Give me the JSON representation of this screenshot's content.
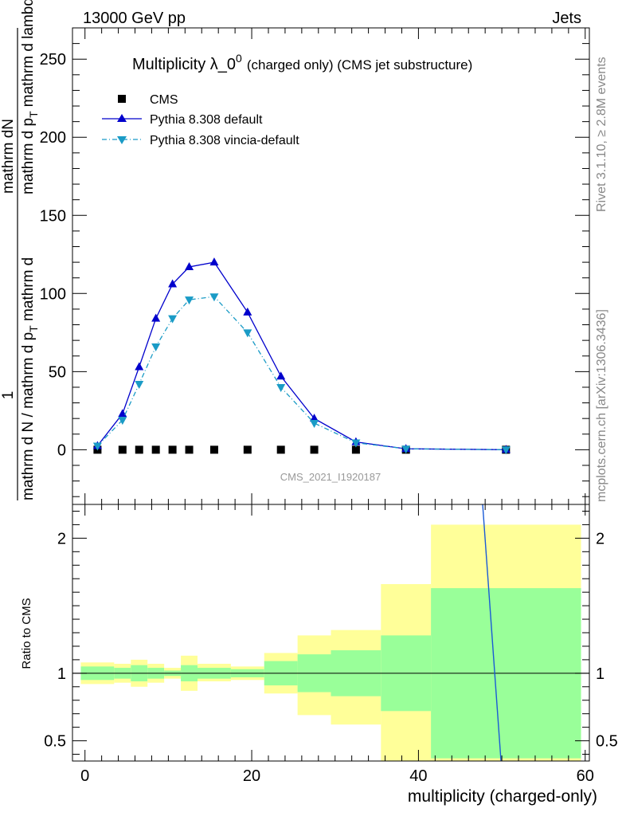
{
  "header": {
    "left": "13000 GeV pp",
    "right": "Jets"
  },
  "side_labels": {
    "rivet": "Rivet 3.1.10, ≥ 2.8M events",
    "mcplots": "mcplots.cern.ch [arXiv:1306.3436]"
  },
  "watermark": "CMS_2021_I1920187",
  "chart_data": [
    {
      "type": "line",
      "title_main": "Multiplicity λ_0",
      "title_sup": "0",
      "title_sub": "(charged only) (CMS jet substructure)",
      "ylabel_num": "1",
      "ylabel_num2": "mathrm dN",
      "ylabel_den": "mathrm d N / mathrm d p",
      "ylabel_den2": "mathrm d p",
      "ylabel_den3": "mathrm d lambda",
      "ylabel_t": "T",
      "ylabel_sub_t": "T",
      "ylabel_mid": " mathrm d",
      "xlim": [
        -1.5,
        60.5
      ],
      "ylim": [
        -35,
        270
      ],
      "yticks": [
        0,
        50,
        100,
        150,
        200,
        250
      ],
      "series": [
        {
          "name": "CMS",
          "style": "square",
          "color": "#000000",
          "points": [
            [
              1.5,
              0
            ],
            [
              4.5,
              0
            ],
            [
              6.5,
              0
            ],
            [
              8.5,
              0
            ],
            [
              10.5,
              0
            ],
            [
              12.5,
              0
            ],
            [
              15.5,
              0
            ],
            [
              19.5,
              0
            ],
            [
              23.5,
              0
            ],
            [
              27.5,
              0
            ],
            [
              32.5,
              0
            ],
            [
              38.5,
              0
            ],
            [
              50.5,
              0
            ]
          ]
        },
        {
          "name": "Pythia 8.308 default",
          "style": "triangle-up",
          "color": "#0000cc",
          "dash": "",
          "points": [
            [
              1.5,
              2.5
            ],
            [
              4.5,
              23
            ],
            [
              6.5,
              53
            ],
            [
              8.5,
              84
            ],
            [
              10.5,
              106
            ],
            [
              12.5,
              117
            ],
            [
              15.5,
              120
            ],
            [
              19.5,
              88
            ],
            [
              23.5,
              47
            ],
            [
              27.5,
              20
            ],
            [
              32.5,
              5
            ],
            [
              38.5,
              0.6
            ],
            [
              50.5,
              0.05
            ]
          ]
        },
        {
          "name": "Pythia 8.308 vincia-default",
          "style": "triangle-down",
          "color": "#1a9bc6",
          "dash": "6,3,1,3",
          "points": [
            [
              1.5,
              2.5
            ],
            [
              4.5,
              19
            ],
            [
              6.5,
              42
            ],
            [
              8.5,
              66
            ],
            [
              10.5,
              84
            ],
            [
              12.5,
              96
            ],
            [
              15.5,
              98
            ],
            [
              19.5,
              75
            ],
            [
              23.5,
              40
            ],
            [
              27.5,
              17
            ],
            [
              32.5,
              4.5
            ],
            [
              38.5,
              0.6
            ],
            [
              50.5,
              0.05
            ]
          ]
        }
      ]
    },
    {
      "type": "area",
      "ylabel": "Ratio to CMS",
      "xlabel": "multiplicity (charged-only)",
      "xlim": [
        -1.5,
        60.5
      ],
      "ylim": [
        0.35,
        2.25
      ],
      "yticks": [
        0.5,
        1,
        2
      ],
      "yticklabels": [
        "0.5",
        "1",
        "2"
      ],
      "xticks": [
        0,
        20,
        40,
        60
      ],
      "bins": [
        {
          "lo": -0.5,
          "hi": 3.5,
          "y_lo": 0.92,
          "y_hi": 1.08,
          "g_lo": 0.95,
          "g_hi": 1.05
        },
        {
          "lo": 3.5,
          "hi": 5.5,
          "y_lo": 0.93,
          "y_hi": 1.07,
          "g_lo": 0.96,
          "g_hi": 1.04
        },
        {
          "lo": 5.5,
          "hi": 7.5,
          "y_lo": 0.9,
          "y_hi": 1.1,
          "g_lo": 0.94,
          "g_hi": 1.06
        },
        {
          "lo": 7.5,
          "hi": 9.5,
          "y_lo": 0.93,
          "y_hi": 1.07,
          "g_lo": 0.96,
          "g_hi": 1.04
        },
        {
          "lo": 9.5,
          "hi": 11.5,
          "y_lo": 0.96,
          "y_hi": 1.04,
          "g_lo": 0.98,
          "g_hi": 1.02
        },
        {
          "lo": 11.5,
          "hi": 13.5,
          "y_lo": 0.87,
          "y_hi": 1.13,
          "g_lo": 0.94,
          "g_hi": 1.06
        },
        {
          "lo": 13.5,
          "hi": 17.5,
          "y_lo": 0.94,
          "y_hi": 1.07,
          "g_lo": 0.96,
          "g_hi": 1.04
        },
        {
          "lo": 17.5,
          "hi": 21.5,
          "y_lo": 0.95,
          "y_hi": 1.05,
          "g_lo": 0.97,
          "g_hi": 1.03
        },
        {
          "lo": 21.5,
          "hi": 25.5,
          "y_lo": 0.85,
          "y_hi": 1.15,
          "g_lo": 0.91,
          "g_hi": 1.09
        },
        {
          "lo": 25.5,
          "hi": 29.5,
          "y_lo": 0.69,
          "y_hi": 1.28,
          "g_lo": 0.86,
          "g_hi": 1.14
        },
        {
          "lo": 29.5,
          "hi": 35.5,
          "y_lo": 0.62,
          "y_hi": 1.32,
          "g_lo": 0.83,
          "g_hi": 1.17
        },
        {
          "lo": 35.5,
          "hi": 41.5,
          "y_lo": 0.35,
          "y_hi": 1.66,
          "g_lo": 0.72,
          "g_hi": 1.28
        },
        {
          "lo": 41.5,
          "hi": 59.5,
          "y_lo": 0.35,
          "y_hi": 2.1,
          "g_lo": 0.37,
          "g_hi": 1.63
        }
      ],
      "ratio_line": {
        "color": "#1a5ad6",
        "points": [
          [
            47.7,
            2.25
          ],
          [
            49.9,
            0.35
          ]
        ]
      },
      "band_colors": {
        "yellow": "#ffff99",
        "green": "#99ff99"
      }
    }
  ]
}
